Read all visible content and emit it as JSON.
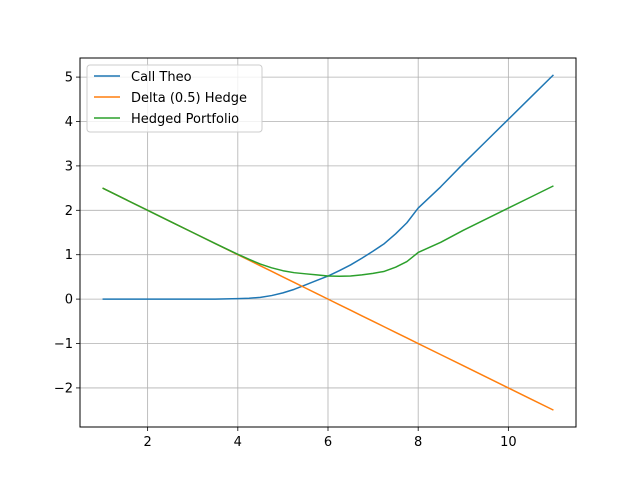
{
  "chart_data": {
    "type": "line",
    "title": "",
    "xlabel": "",
    "ylabel": "",
    "xlim": [
      0.5,
      11.5
    ],
    "ylim": [
      -2.88,
      5.43
    ],
    "grid": true,
    "legend_position": "top-left",
    "x_ticks": [
      2,
      4,
      6,
      8,
      10
    ],
    "y_ticks": [
      -2,
      -1,
      0,
      1,
      2,
      3,
      4,
      5
    ],
    "x_tick_labels": [
      "2",
      "4",
      "6",
      "8",
      "10"
    ],
    "y_tick_labels": [
      "−2",
      "−1",
      "0",
      "1",
      "2",
      "3",
      "4",
      "5"
    ],
    "x": [
      1,
      1.5,
      2,
      2.5,
      3,
      3.5,
      4,
      4.25,
      4.5,
      4.75,
      5,
      5.25,
      5.5,
      5.75,
      6,
      6.25,
      6.5,
      6.75,
      7,
      7.25,
      7.5,
      7.75,
      8,
      8.5,
      9,
      9.5,
      10,
      10.5,
      11
    ],
    "series": [
      {
        "name": "Call Theo",
        "color": "#1f77b4",
        "values": [
          0,
          0,
          0,
          0,
          0,
          0,
          0.01,
          0.02,
          0.04,
          0.08,
          0.14,
          0.22,
          0.32,
          0.42,
          0.52,
          0.64,
          0.77,
          0.92,
          1.08,
          1.25,
          1.47,
          1.72,
          2.05,
          2.53,
          3.05,
          3.55,
          4.05,
          4.55,
          5.05
        ]
      },
      {
        "name": "Delta (0.5) Hedge",
        "color": "#ff7f0e",
        "values": [
          2.5,
          2.25,
          2.0,
          1.75,
          1.5,
          1.25,
          1.0,
          0.875,
          0.75,
          0.625,
          0.5,
          0.375,
          0.25,
          0.125,
          0,
          -0.125,
          -0.25,
          -0.375,
          -0.5,
          -0.625,
          -0.75,
          -0.875,
          -1.0,
          -1.25,
          -1.5,
          -1.75,
          -2.0,
          -2.25,
          -2.5
        ]
      },
      {
        "name": "Hedged Portfolio",
        "color": "#2ca02c",
        "values": [
          2.5,
          2.25,
          2.0,
          1.75,
          1.5,
          1.25,
          1.01,
          0.895,
          0.79,
          0.705,
          0.64,
          0.595,
          0.57,
          0.545,
          0.52,
          0.515,
          0.52,
          0.545,
          0.58,
          0.625,
          0.72,
          0.845,
          1.05,
          1.28,
          1.55,
          1.8,
          2.05,
          2.3,
          2.55
        ]
      }
    ]
  }
}
